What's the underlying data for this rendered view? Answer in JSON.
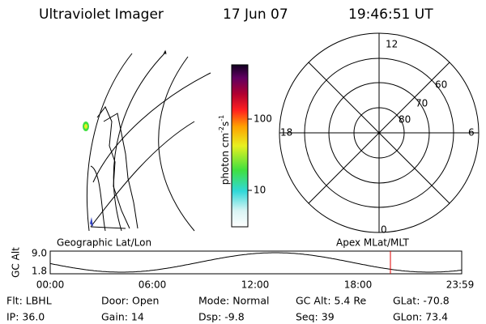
{
  "header": {
    "title": "Ultraviolet Imager",
    "date": "17 Jun 07",
    "time": "19:46:51 UT"
  },
  "colorbar": {
    "unit_label": [
      "photon cm",
      "-2",
      "s",
      "-1"
    ],
    "ticks": [
      "100",
      "10"
    ]
  },
  "polar_plot": {
    "hour_labels": [
      "12",
      "18",
      "6",
      "0"
    ],
    "lat_labels": [
      "60",
      "70",
      "80"
    ]
  },
  "orbit_plot": {
    "left_label": "Geographic Lat/Lon",
    "right_label": "Apex MLat/MLT",
    "y_label": "GC Alt",
    "y_labels": [
      "9.0",
      "1.8"
    ],
    "x_labels": [
      "00:00",
      "06:00",
      "12:00",
      "18:00",
      "23:59"
    ]
  },
  "footer": {
    "rows": [
      [
        "Flt: LBHL",
        "Door: Open",
        "Mode: Normal",
        "GC Alt: 5.4 Re",
        "GLat: -70.8"
      ],
      [
        "IP: 36.0",
        "Gain: 14",
        "Dsp:  -9.8",
        "Seq: 39",
        "GLon:  73.4"
      ]
    ]
  }
}
